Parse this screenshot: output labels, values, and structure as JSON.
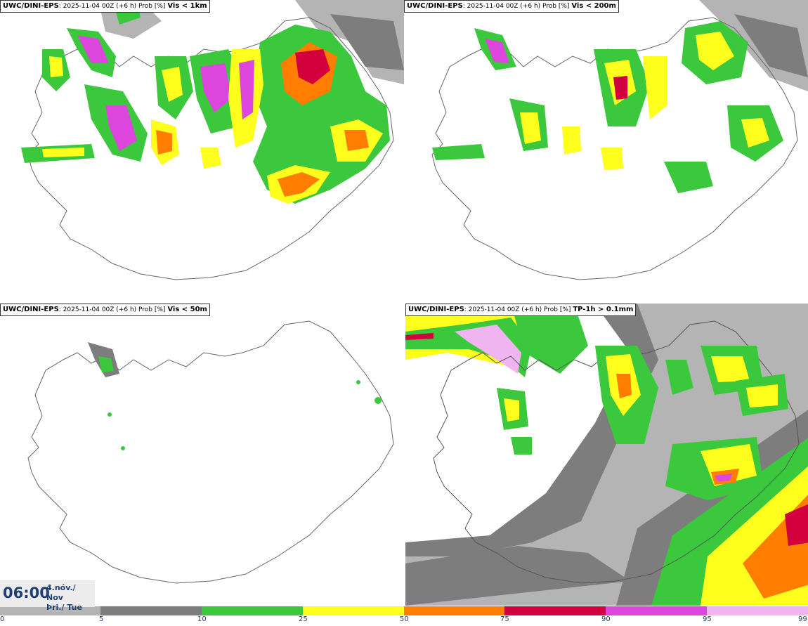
{
  "panels": [
    {
      "model": "UWC/DINI-EPS",
      "info": ": 2025-11-04 00Z (+6 h) Prob [%]",
      "var": "Vis < 1km"
    },
    {
      "model": "UWC/DINI-EPS",
      "info": ": 2025-11-04 00Z (+6 h) Prob [%]",
      "var": "Vis < 200m"
    },
    {
      "model": "UWC/DINI-EPS",
      "info": ": 2025-11-04 00Z (+6 h) Prob [%]",
      "var": "Vis < 50m"
    },
    {
      "model": "UWC/DINI-EPS",
      "info": ": 2025-11-04 00Z (+6 h) Prob [%]",
      "var": "TP-1h > 0.1mm"
    }
  ],
  "time": {
    "clock": "06:00",
    "date_line1": "4.nóv./ Nov",
    "date_line2": "Þri./ Tue"
  },
  "legend": {
    "ticks": [
      "0",
      "5",
      "10",
      "25",
      "50",
      "75",
      "90",
      "95",
      "99"
    ],
    "colors": [
      "#ffffff",
      "#b4b4b4",
      "#7d7d7d",
      "#3cc83c",
      "#ffff1e",
      "#ff7d00",
      "#d2003c",
      "#dc46dc",
      "#f0b4f0"
    ]
  },
  "colors": {
    "light_gray": "#b4b4b4",
    "dark_gray": "#7d7d7d",
    "green": "#3cc83c",
    "yellow": "#ffff1e",
    "orange": "#ff7d00",
    "red": "#d2003c",
    "magenta": "#dc46dc",
    "pink": "#f0b4f0"
  }
}
